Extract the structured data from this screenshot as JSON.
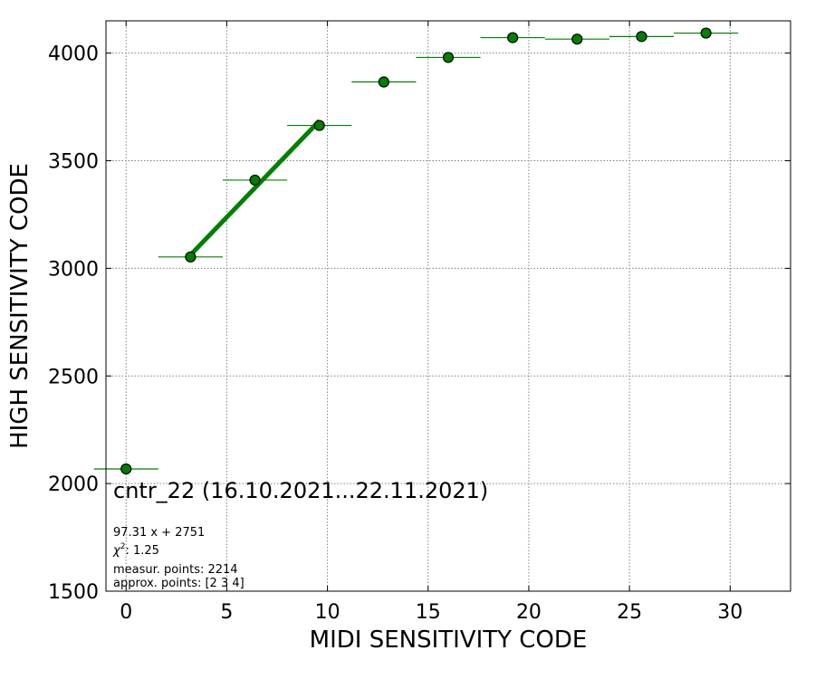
{
  "chart_data": {
    "type": "scatter",
    "xlabel": "MIDI SENSITIVITY CODE",
    "ylabel": "HIGH SENSITIVITY CODE",
    "xlim": [
      -1,
      33
    ],
    "ylim": [
      1500,
      4150
    ],
    "x_ticks": [
      0,
      5,
      10,
      15,
      20,
      25,
      30
    ],
    "y_ticks": [
      1500,
      2000,
      2500,
      3000,
      3500,
      4000
    ],
    "x_tick_labels": [
      "0",
      "5",
      "10",
      "15",
      "20",
      "25",
      "30"
    ],
    "y_tick_labels": [
      "1500",
      "2000",
      "2500",
      "3000",
      "3500",
      "4000"
    ],
    "grid": true,
    "colors": {
      "points": "#008000",
      "fit_line": "#008000",
      "marker_edge": "#000000"
    },
    "series": [
      {
        "points": [
          {
            "x": 0.0,
            "y": 2068,
            "x_err": 1.6,
            "y_err": 0
          },
          {
            "x": 3.2,
            "y": 3053,
            "x_err": 1.6,
            "y_err": 12
          },
          {
            "x": 6.4,
            "y": 3410,
            "x_err": 1.6,
            "y_err": 18
          },
          {
            "x": 9.6,
            "y": 3664,
            "x_err": 1.6,
            "y_err": 15
          },
          {
            "x": 12.8,
            "y": 3866,
            "x_err": 1.6,
            "y_err": 12
          },
          {
            "x": 16.0,
            "y": 3980,
            "x_err": 1.6,
            "y_err": 10
          },
          {
            "x": 19.2,
            "y": 4072,
            "x_err": 1.6,
            "y_err": 8
          },
          {
            "x": 22.4,
            "y": 4065,
            "x_err": 1.6,
            "y_err": 8
          },
          {
            "x": 25.6,
            "y": 4077,
            "x_err": 1.6,
            "y_err": 8
          },
          {
            "x": 28.8,
            "y": 4093,
            "x_err": 1.6,
            "y_err": 8
          }
        ]
      }
    ],
    "fit": {
      "slope": 97.31,
      "intercept": 2751,
      "x_range": [
        3.2,
        9.6
      ]
    },
    "annotations": {
      "title": "cntr_22 (16.10.2021...22.11.2021)",
      "equation": "97.31 x + 2751",
      "chi2_symbol": "χ",
      "chi2_sup": "2",
      "chi2_value": ": 1.25",
      "measur_points": "measur. points: 2214",
      "approx_points": "approx. points: [2 3 4]"
    }
  }
}
